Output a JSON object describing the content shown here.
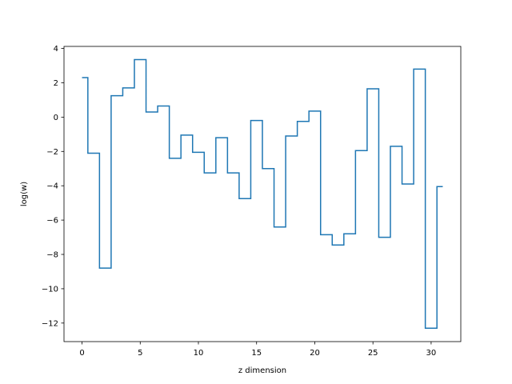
{
  "chart_data": {
    "type": "line",
    "step": "mid",
    "xlabel": "z dimension",
    "ylabel": "log(w)",
    "xlim": [
      -1.55,
      32.55
    ],
    "ylim": [
      -13.08,
      4.12
    ],
    "xticks": [
      0,
      5,
      10,
      15,
      20,
      25,
      30
    ],
    "yticks": [
      -12,
      -10,
      -8,
      -6,
      -4,
      -2,
      0,
      2,
      4
    ],
    "grid": false,
    "line_color": "#1f77b4",
    "x": [
      0,
      1,
      2,
      3,
      4,
      5,
      6,
      7,
      8,
      9,
      10,
      11,
      12,
      13,
      14,
      15,
      16,
      17,
      18,
      19,
      20,
      21,
      22,
      23,
      24,
      25,
      26,
      27,
      28,
      29,
      30,
      31
    ],
    "values": [
      2.3,
      -2.1,
      -8.8,
      1.25,
      1.7,
      3.35,
      0.3,
      0.65,
      -2.4,
      -1.05,
      -2.05,
      -3.25,
      -1.2,
      -3.25,
      -4.75,
      -0.2,
      -3.0,
      -6.4,
      -1.1,
      -0.25,
      0.35,
      -6.85,
      -7.45,
      -6.8,
      -1.95,
      1.65,
      -7.0,
      -1.7,
      -3.9,
      2.8,
      -12.3,
      -4.05
    ]
  }
}
